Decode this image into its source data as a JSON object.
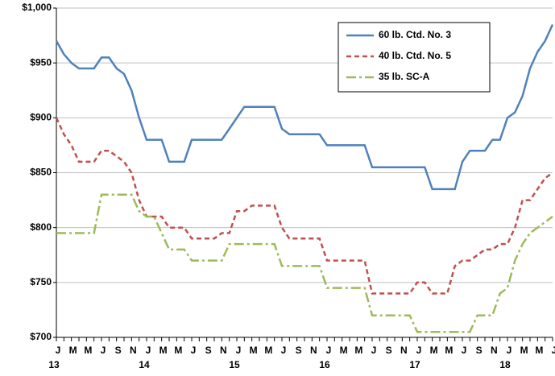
{
  "chart_data": {
    "type": "line",
    "categories": [
      "J",
      null,
      "M",
      null,
      "M",
      null,
      "J",
      null,
      "S",
      null,
      "N",
      null,
      "J",
      null,
      "M",
      null,
      "M",
      null,
      "J",
      null,
      "S",
      null,
      "N",
      null,
      "J",
      null,
      "M",
      null,
      "M",
      null,
      "J",
      null,
      "S",
      null,
      "N",
      null,
      "J",
      null,
      "M",
      null,
      "M",
      null,
      "J",
      null,
      "S",
      null,
      "N",
      null,
      "J",
      null,
      "M",
      null,
      "M",
      null,
      "J",
      null,
      "S",
      null,
      "N",
      null,
      "J",
      null,
      "M",
      null,
      "M",
      null,
      "J"
    ],
    "year_labels": [
      "13",
      "14",
      "15",
      "16",
      "17",
      "18"
    ],
    "ylim": [
      700,
      1000
    ],
    "yticks": [
      {
        "value": 700,
        "label": "$700"
      },
      {
        "value": 750,
        "label": "$750"
      },
      {
        "value": 800,
        "label": "$800"
      },
      {
        "value": 850,
        "label": "$850"
      },
      {
        "value": 900,
        "label": "$900"
      },
      {
        "value": 950,
        "label": "$950"
      },
      {
        "value": 1000,
        "label": "$1,000"
      }
    ],
    "grid": true,
    "legend": "upper right",
    "series": [
      {
        "name": "60 lb. Ctd. No. 3",
        "color": "#4f81bd",
        "dash": "solid",
        "values": [
          970,
          958,
          950,
          945,
          945,
          945,
          955,
          955,
          945,
          940,
          925,
          900,
          880,
          880,
          880,
          860,
          860,
          860,
          880,
          880,
          880,
          880,
          880,
          890,
          900,
          910,
          910,
          910,
          910,
          910,
          890,
          885,
          885,
          885,
          885,
          885,
          875,
          875,
          875,
          875,
          875,
          875,
          855,
          855,
          855,
          855,
          855,
          855,
          855,
          855,
          835,
          835,
          835,
          835,
          860,
          870,
          870,
          870,
          880,
          880,
          900,
          905,
          920,
          945,
          960,
          970,
          985
        ]
      },
      {
        "name": "40 lb. Ctd. No. 5",
        "color": "#c0504d",
        "dash": "dashed",
        "values": [
          900,
          885,
          875,
          860,
          860,
          860,
          870,
          870,
          865,
          860,
          850,
          825,
          810,
          810,
          810,
          800,
          800,
          800,
          790,
          790,
          790,
          790,
          795,
          795,
          815,
          815,
          820,
          820,
          820,
          820,
          800,
          790,
          790,
          790,
          790,
          790,
          770,
          770,
          770,
          770,
          770,
          770,
          740,
          740,
          740,
          740,
          740,
          740,
          750,
          750,
          740,
          740,
          740,
          765,
          770,
          770,
          775,
          780,
          780,
          785,
          785,
          800,
          825,
          825,
          835,
          845,
          850
        ]
      },
      {
        "name": "35 lb. SC-A",
        "color": "#9bbb59",
        "dash": "dashdot",
        "values": [
          795,
          795,
          795,
          795,
          795,
          795,
          830,
          830,
          830,
          830,
          830,
          815,
          810,
          810,
          795,
          780,
          780,
          780,
          770,
          770,
          770,
          770,
          770,
          785,
          785,
          785,
          785,
          785,
          785,
          785,
          765,
          765,
          765,
          765,
          765,
          765,
          745,
          745,
          745,
          745,
          745,
          745,
          720,
          720,
          720,
          720,
          720,
          720,
          705,
          705,
          705,
          705,
          705,
          705,
          705,
          705,
          720,
          720,
          720,
          740,
          745,
          770,
          785,
          795,
          800,
          805,
          810
        ]
      }
    ]
  }
}
